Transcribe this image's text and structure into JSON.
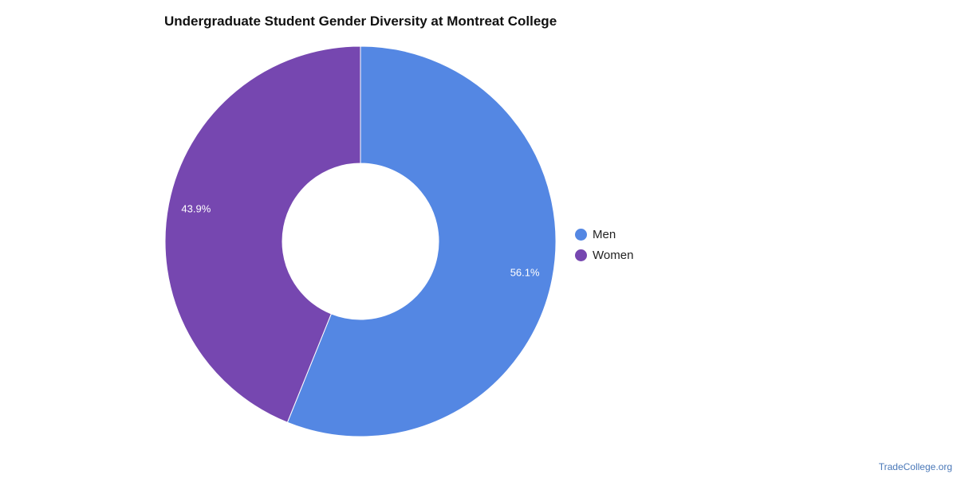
{
  "chart_data": {
    "type": "pie",
    "title": "Undergraduate Student Gender Diversity at Montreat College",
    "donut": true,
    "slices": [
      {
        "name": "Men",
        "value": 56.1,
        "label": "56.1%",
        "color": "#5487e3"
      },
      {
        "name": "Women",
        "value": 43.9,
        "label": "43.9%",
        "color": "#7647b0"
      }
    ],
    "legend": {
      "position": "right",
      "entries": [
        "Men",
        "Women"
      ]
    }
  },
  "watermark": "TradeCollege.org"
}
